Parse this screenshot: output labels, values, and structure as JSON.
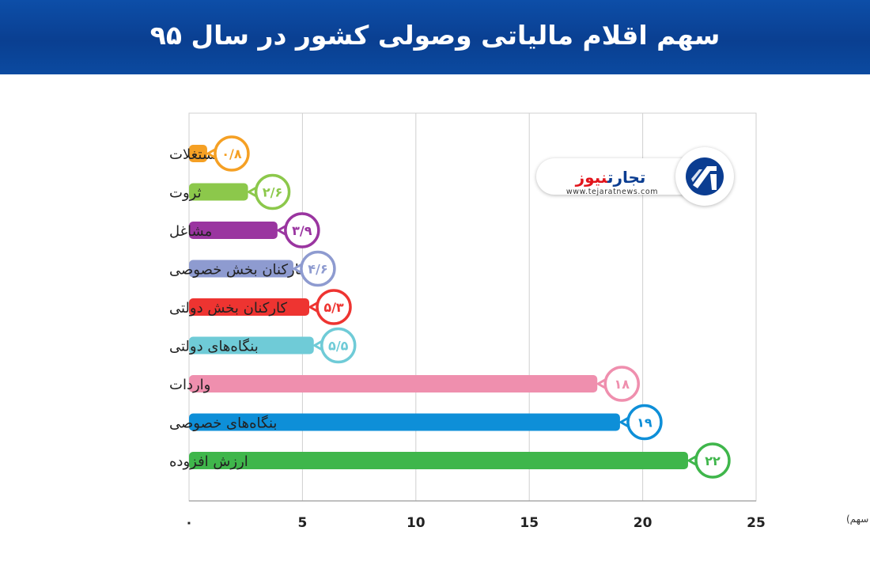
{
  "header": {
    "title": "سهم اقلام مالیاتی وصولی کشور در سال ۹۵"
  },
  "logo": {
    "name_part1": "تجارت",
    "name_part2": "نیوز",
    "url": "www.tejaratnews.com",
    "brand_colors": {
      "primary": "#0b3d91",
      "accent": "#e2141b"
    }
  },
  "chart_data": {
    "type": "bar",
    "orientation": "horizontal",
    "title": "سهم اقلام مالیاتی وصولی کشور در سال ۹۵",
    "xlabel": "(درصد سهم)",
    "ylabel": "",
    "xlim": [
      0,
      25
    ],
    "x_ticks": [
      0,
      5,
      10,
      15,
      20,
      25
    ],
    "x_tick_labels": [
      "۰",
      "5",
      "10",
      "15",
      "20",
      "25"
    ],
    "grid": true,
    "categories": [
      "مستغلات",
      "ثروت",
      "مشاغل",
      "کارکنان بخش خصوصی",
      "کارکنان بخش دولتی",
      "بنگاه‌های دولتی",
      "واردات",
      "بنگاه‌های خصوصی",
      "ارزش افزوده"
    ],
    "values": [
      0.8,
      2.6,
      3.9,
      4.6,
      5.3,
      5.5,
      18,
      19,
      22
    ],
    "value_labels": [
      "۰/۸",
      "۲/۶",
      "۳/۹",
      "۴/۶",
      "۵/۳",
      "۵/۵",
      "۱۸",
      "۱۹",
      "۲۲"
    ],
    "colors": [
      "#f5a024",
      "#8cc84b",
      "#9a35a0",
      "#8e9bd0",
      "#ee3431",
      "#6fcbd7",
      "#ef8fae",
      "#0e8fd8",
      "#3fb64b"
    ]
  }
}
